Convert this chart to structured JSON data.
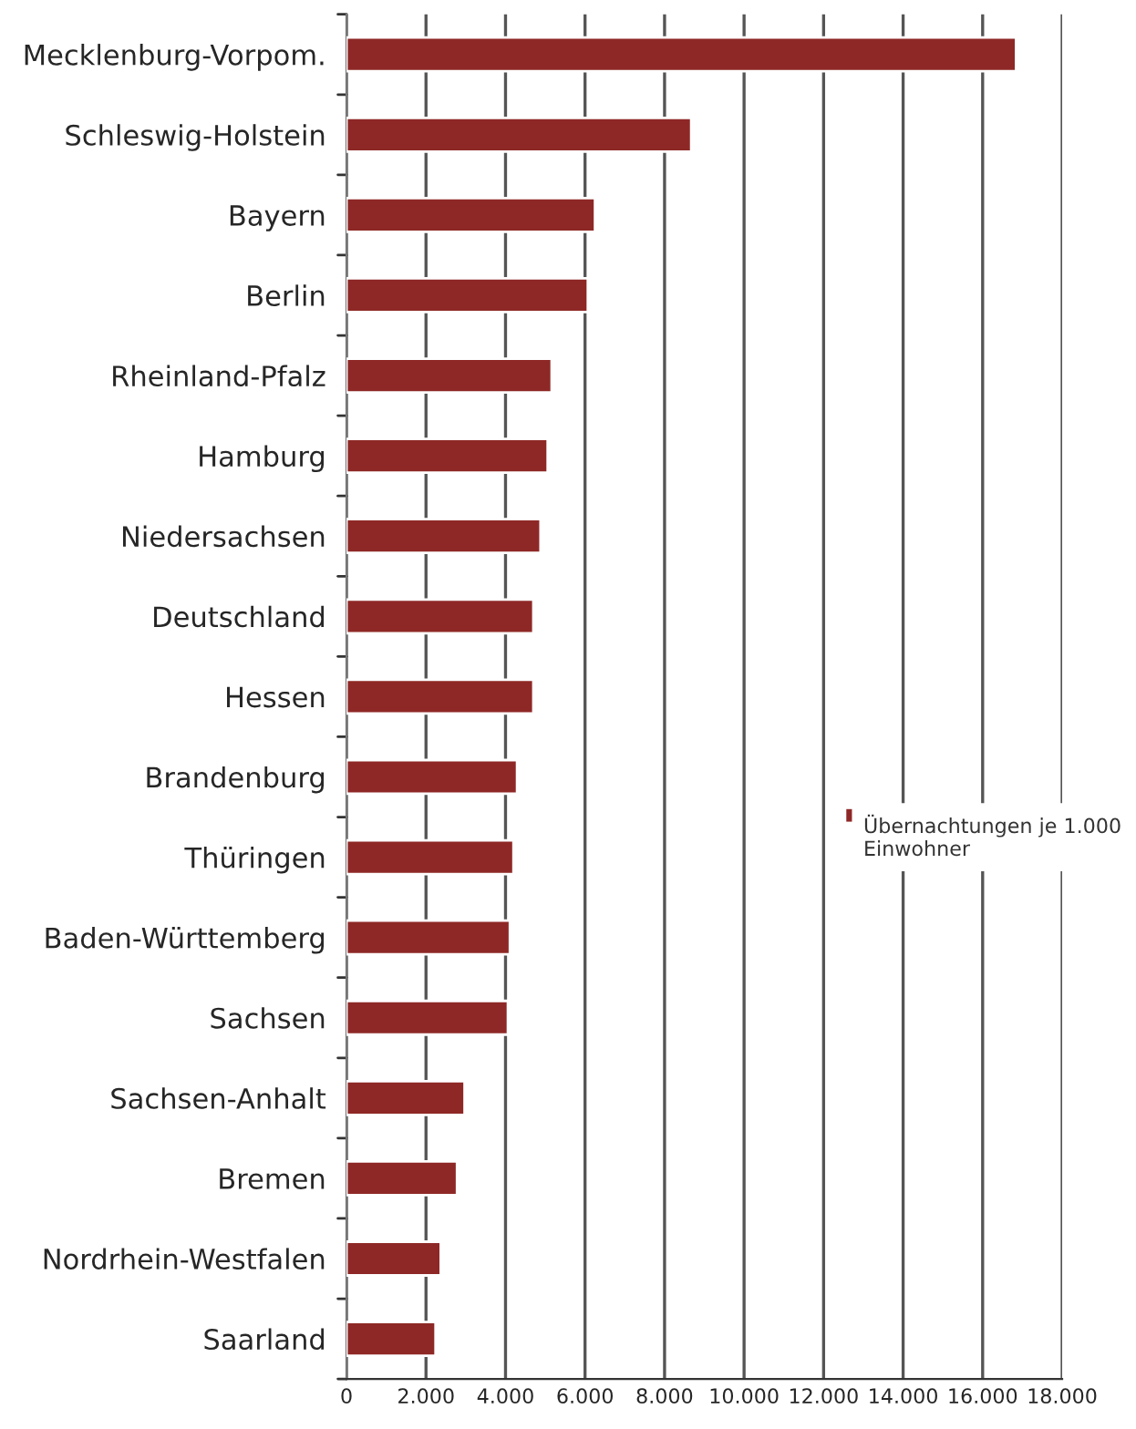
{
  "chart_data": {
    "type": "bar",
    "orientation": "horizontal",
    "categories": [
      "Mecklenburg-Vorpom.",
      "Schleswig-Holstein",
      "Bayern",
      "Berlin",
      "Rheinland-Pfalz",
      "Hamburg",
      "Niedersachsen",
      "Deutschland",
      "Hessen",
      "Brandenburg",
      "Thüringen",
      "Baden-Württemberg",
      "Sachsen",
      "Sachsen-Anhalt",
      "Bremen",
      "Nordrhein-Westfalen",
      "Saarland"
    ],
    "series": [
      {
        "name": "Übernachtungen je 1.000 Einwohner",
        "color": "#8e2826",
        "values": [
          16840,
          8670,
          6250,
          6070,
          5160,
          5060,
          4880,
          4700,
          4700,
          4290,
          4200,
          4110,
          4060,
          2970,
          2780,
          2370,
          2240
        ]
      }
    ],
    "xlim": [
      0,
      18000
    ],
    "xticks": [
      {
        "value": 0,
        "label": "0"
      },
      {
        "value": 2000,
        "label": "2.000"
      },
      {
        "value": 4000,
        "label": "4.000"
      },
      {
        "value": 6000,
        "label": "6.000"
      },
      {
        "value": 8000,
        "label": "8.000"
      },
      {
        "value": 10000,
        "label": "10.000"
      },
      {
        "value": 12000,
        "label": "12.000"
      },
      {
        "value": 14000,
        "label": "14.000"
      },
      {
        "value": 16000,
        "label": "16.000"
      },
      {
        "value": 18000,
        "label": "18.000"
      }
    ],
    "grid": "x",
    "legend": "right"
  }
}
